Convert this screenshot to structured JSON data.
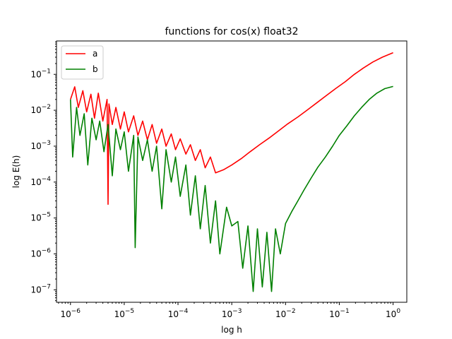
{
  "chart_data": {
    "type": "line",
    "title": "functions for cos(x) float32",
    "xlabel": "log h",
    "ylabel": "log E(h)",
    "xscale": "log",
    "yscale": "log",
    "xlim": [
      5.5e-07,
      1.8
    ],
    "ylim": [
      4.5e-08,
      0.85
    ],
    "grid": false,
    "legend_position": "top-left",
    "x_ticks": [
      {
        "value": 1e-06,
        "base": "10",
        "exp": "−6"
      },
      {
        "value": 1e-05,
        "base": "10",
        "exp": "−5"
      },
      {
        "value": 0.0001,
        "base": "10",
        "exp": "−4"
      },
      {
        "value": 0.001,
        "base": "10",
        "exp": "−3"
      },
      {
        "value": 0.01,
        "base": "10",
        "exp": "−2"
      },
      {
        "value": 0.1,
        "base": "10",
        "exp": "−1"
      },
      {
        "value": 1,
        "base": "10",
        "exp": "0"
      }
    ],
    "y_ticks": [
      {
        "value": 1e-07,
        "base": "10",
        "exp": "−7"
      },
      {
        "value": 1e-06,
        "base": "10",
        "exp": "−6"
      },
      {
        "value": 1e-05,
        "base": "10",
        "exp": "−5"
      },
      {
        "value": 0.0001,
        "base": "10",
        "exp": "−4"
      },
      {
        "value": 0.001,
        "base": "10",
        "exp": "−3"
      },
      {
        "value": 0.01,
        "base": "10",
        "exp": "−2"
      },
      {
        "value": 0.1,
        "base": "10",
        "exp": "−1"
      }
    ],
    "series": [
      {
        "name": "a",
        "color": "#ff0000",
        "x": [
          1e-06,
          1.2e-06,
          1.4e-06,
          1.7e-06,
          2e-06,
          2.4e-06,
          2.8e-06,
          3.3e-06,
          4e-06,
          4.8e-06,
          5e-06,
          5.2e-06,
          6e-06,
          7e-06,
          8.5e-06,
          1e-05,
          1.2e-05,
          1.5e-05,
          1.8e-05,
          2.2e-05,
          2.7e-05,
          3.3e-05,
          4e-05,
          5e-05,
          6e-05,
          7.5e-05,
          9e-05,
          0.00011,
          0.00014,
          0.00017,
          0.00021,
          0.00026,
          0.00032,
          0.0004,
          0.0005,
          0.0007,
          0.001,
          0.0015,
          0.0022,
          0.0033,
          0.005,
          0.0075,
          0.011,
          0.017,
          0.025,
          0.038,
          0.056,
          0.085,
          0.13,
          0.19,
          0.28,
          0.42,
          0.63,
          1.0
        ],
        "y": [
          0.02,
          0.045,
          0.012,
          0.035,
          0.009,
          0.028,
          0.006,
          0.03,
          0.005,
          0.02,
          2.4e-05,
          0.015,
          0.004,
          0.012,
          0.003,
          0.009,
          0.0025,
          0.007,
          0.002,
          0.005,
          0.0015,
          0.004,
          0.0012,
          0.003,
          0.001,
          0.0022,
          0.0008,
          0.0016,
          0.0006,
          0.0011,
          0.0004,
          0.0008,
          0.00025,
          0.0005,
          0.00018,
          0.00022,
          0.0003,
          0.00045,
          0.0007,
          0.0011,
          0.0017,
          0.0027,
          0.0042,
          0.0065,
          0.01,
          0.016,
          0.025,
          0.04,
          0.063,
          0.1,
          0.15,
          0.22,
          0.3,
          0.4
        ]
      },
      {
        "name": "b",
        "color": "#008000",
        "x": [
          1e-06,
          1.1e-06,
          1.3e-06,
          1.5e-06,
          1.8e-06,
          2.1e-06,
          2.5e-06,
          3e-06,
          3.5e-06,
          4.2e-06,
          5e-06,
          6e-06,
          7e-06,
          8.5e-06,
          1e-05,
          1.2e-05,
          1.5e-05,
          1.6e-05,
          1.8e-05,
          2.2e-05,
          2.7e-05,
          3.3e-05,
          4e-05,
          5e-05,
          6e-05,
          7.5e-05,
          9e-05,
          0.00011,
          0.00014,
          0.00017,
          0.00021,
          0.00026,
          0.00032,
          0.0004,
          0.0005,
          0.0006,
          0.0008,
          0.001,
          0.0013,
          0.0016,
          0.002,
          0.0025,
          0.003,
          0.0037,
          0.0045,
          0.0055,
          0.0065,
          0.008,
          0.01,
          0.013,
          0.017,
          0.022,
          0.03,
          0.04,
          0.055,
          0.075,
          0.1,
          0.14,
          0.19,
          0.26,
          0.36,
          0.5,
          0.7,
          1.0
        ],
        "y": [
          0.02,
          0.0005,
          0.012,
          0.002,
          0.008,
          0.0003,
          0.006,
          0.0015,
          0.005,
          0.0007,
          0.004,
          0.00015,
          0.003,
          0.0008,
          0.0025,
          0.0002,
          0.002,
          1.5e-06,
          0.0018,
          0.0004,
          0.0015,
          0.0002,
          0.001,
          1.8e-05,
          0.0008,
          0.0001,
          0.0005,
          4e-05,
          0.0003,
          1.2e-05,
          0.00015,
          5e-06,
          8e-05,
          2e-06,
          3e-05,
          1e-06,
          2e-05,
          6e-06,
          8e-06,
          4e-07,
          6e-06,
          9e-08,
          5e-06,
          1.2e-07,
          4e-06,
          9e-08,
          5e-06,
          1e-06,
          7e-06,
          1.5e-05,
          3e-05,
          6e-05,
          0.00013,
          0.00026,
          0.0005,
          0.001,
          0.002,
          0.0038,
          0.007,
          0.012,
          0.02,
          0.03,
          0.04,
          0.046
        ]
      }
    ]
  }
}
